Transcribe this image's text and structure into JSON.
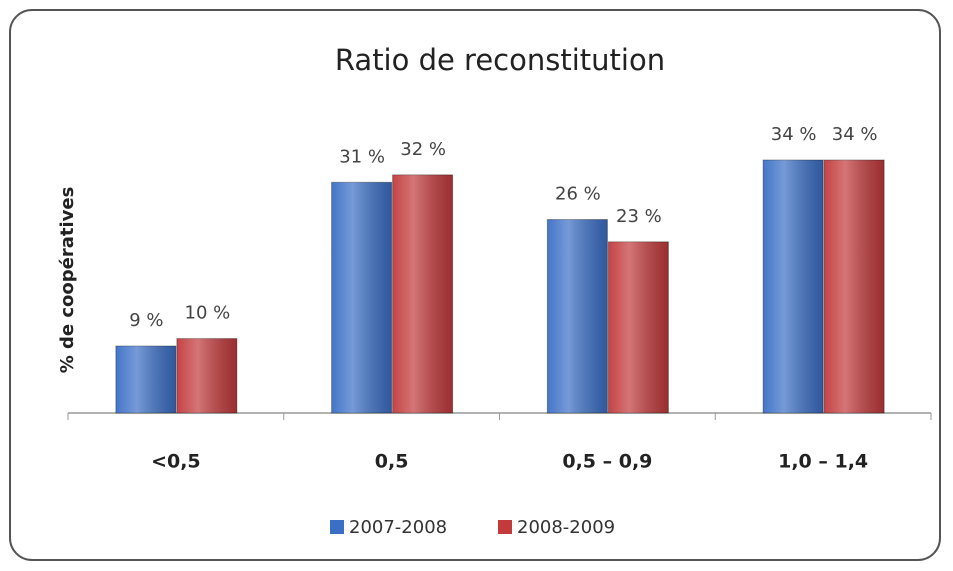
{
  "chart_data": {
    "type": "bar",
    "title": "Ratio de reconstitution",
    "y_label": "% de coopératives",
    "categories": [
      "<0,5",
      "0,5",
      "0,5 – 0,9",
      "1,0 – 1,4"
    ],
    "series": [
      {
        "name": "2007-2008",
        "color": "#3b6fc6",
        "values": [
          9,
          31,
          26,
          34
        ],
        "value_labels": [
          "9 %",
          "31 %",
          "26 %",
          "34 %"
        ]
      },
      {
        "name": "2008-2009",
        "color": "#c23a3c",
        "values": [
          10,
          32,
          23,
          34
        ],
        "value_labels": [
          "10 %",
          "32 %",
          "23 %",
          "34 %"
        ]
      }
    ],
    "legend": "bottom"
  }
}
